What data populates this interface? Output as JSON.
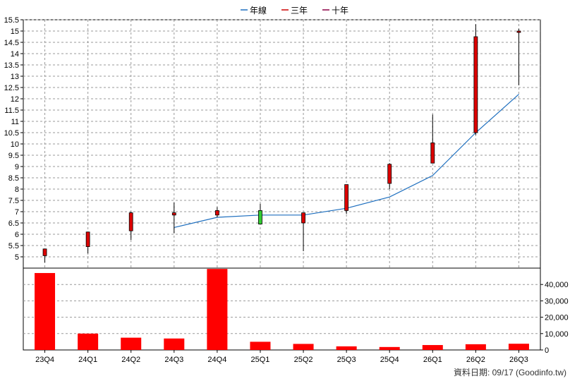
{
  "legend": [
    {
      "label": "年線",
      "color": "#1e6fbf",
      "icon": "line-icon"
    },
    {
      "label": "三年",
      "color": "#cc0000",
      "icon": "line-icon"
    },
    {
      "label": "十年",
      "color": "#8b0045",
      "icon": "line-icon"
    }
  ],
  "footer_note": "資料日期: 09/17  (Goodinfo.tw)",
  "colors": {
    "candle_up": "#dd0000",
    "candle_down": "#33cc33",
    "volume_bar": "#ff0000",
    "grid": "#999999",
    "ma_line": "#1e6fbf"
  },
  "chart_data": [
    {
      "type": "candlestick",
      "categories": [
        "23Q4",
        "24Q1",
        "24Q2",
        "24Q3",
        "24Q4",
        "25Q1",
        "25Q2",
        "25Q3",
        "25Q4",
        "26Q1",
        "26Q2",
        "26Q3"
      ],
      "ylim": [
        4.5,
        15.5
      ],
      "yticks": [
        "5",
        "5.5",
        "6",
        "6.5",
        "7",
        "7.5",
        "8",
        "8.5",
        "9",
        "9.5",
        "10",
        "10.5",
        "11",
        "11.5",
        "12",
        "12.5",
        "13",
        "13.5",
        "14",
        "14.5",
        "15",
        "15.5"
      ],
      "y_axis_side": "left",
      "grid": true,
      "candles": [
        {
          "o": 5.05,
          "h": 5.35,
          "l": 4.75,
          "c": 5.35
        },
        {
          "o": 5.45,
          "h": 6.1,
          "l": 5.15,
          "c": 6.1
        },
        {
          "o": 6.15,
          "h": 7.0,
          "l": 5.75,
          "c": 6.95
        },
        {
          "o": 6.85,
          "h": 7.4,
          "l": 6.05,
          "c": 6.95
        },
        {
          "o": 6.85,
          "h": 7.2,
          "l": 6.75,
          "c": 7.05
        },
        {
          "o": 7.05,
          "h": 7.35,
          "l": 6.45,
          "c": 6.45
        },
        {
          "o": 6.5,
          "h": 6.95,
          "l": 5.25,
          "c": 6.95
        },
        {
          "o": 7.05,
          "h": 8.2,
          "l": 6.9,
          "c": 8.2
        },
        {
          "o": 8.25,
          "h": 9.15,
          "l": 8.0,
          "c": 9.1
        },
        {
          "o": 9.15,
          "h": 11.3,
          "l": 9.15,
          "c": 10.05
        },
        {
          "o": 10.5,
          "h": 15.3,
          "l": 10.4,
          "c": 14.75
        },
        {
          "o": 14.95,
          "h": 15.1,
          "l": 12.6,
          "c": 15.0
        }
      ],
      "series": [
        {
          "name": "年線",
          "values": [
            null,
            null,
            null,
            6.3,
            6.75,
            6.85,
            6.85,
            7.15,
            7.65,
            8.6,
            10.5,
            12.2
          ]
        }
      ]
    },
    {
      "type": "bar",
      "categories": [
        "23Q4",
        "24Q1",
        "24Q2",
        "24Q3",
        "24Q4",
        "25Q1",
        "25Q2",
        "25Q3",
        "25Q4",
        "26Q1",
        "26Q2",
        "26Q3"
      ],
      "values": [
        47000,
        10000,
        7500,
        7000,
        49500,
        5000,
        3700,
        2200,
        1800,
        3000,
        3500,
        3800
      ],
      "ylim": [
        0,
        50000
      ],
      "yticks": [
        "0",
        "10,000",
        "20,000",
        "30,000",
        "40,000"
      ],
      "y_axis_side": "right",
      "grid": true
    }
  ]
}
